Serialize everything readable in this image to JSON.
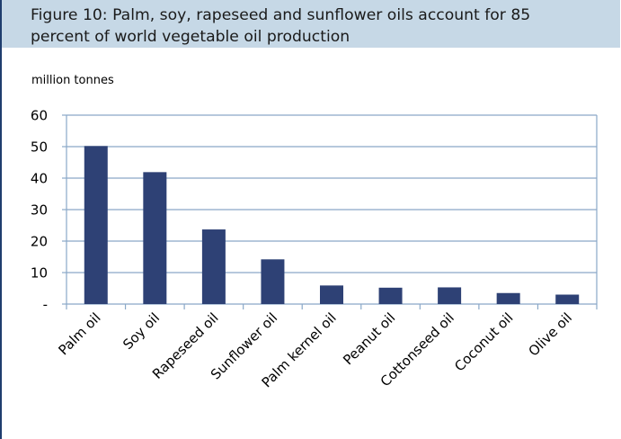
{
  "figure": {
    "title_line1": "Figure 10: Palm, soy, rapeseed and sunflower oils account for 85",
    "title_line2": "percent of world vegetable oil production",
    "units": "million tonnes"
  },
  "colors": {
    "bar": "#2e4175",
    "axis": "#8aa8c8",
    "title_bg": "#c6d8e6"
  },
  "chart_data": {
    "type": "bar",
    "title": "Figure 10: Palm, soy, rapeseed and sunflower oils account for 85 percent of world vegetable oil production",
    "ylabel": "million tonnes",
    "xlabel": "",
    "categories": [
      "Palm oil",
      "Soy oil",
      "Rapeseed oil",
      "Sunflower oil",
      "Palm kernel oil",
      "Peanut oil",
      "Cottonseed oil",
      "Coconut oil",
      "Olive oil"
    ],
    "values": [
      50.2,
      41.9,
      23.7,
      14.2,
      5.9,
      5.2,
      5.3,
      3.5,
      3.0
    ],
    "ylim": [
      0,
      60
    ],
    "yticks": [
      0,
      10,
      20,
      30,
      40,
      50,
      60
    ],
    "ytick_labels": [
      "-",
      "10",
      "20",
      "30",
      "40",
      "50",
      "60"
    ],
    "grid": true,
    "legend": "none"
  }
}
